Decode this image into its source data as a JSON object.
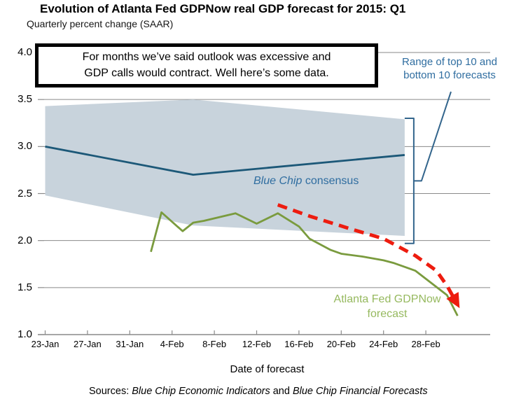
{
  "header": {
    "title": "Evolution of Atlanta Fed GDPNow real GDP forecast for 2015: Q1",
    "subtitle": "Quarterly percent change (SAAR)"
  },
  "annotation": {
    "line1": "For months we’ve said outlook was excessive and",
    "line2": "GDP calls would contract. Well here’s some data."
  },
  "labels": {
    "range_line1": "Range of top 10 and",
    "range_line2": "bottom 10 forecasts",
    "blue_chip_italic": "Blue Chip",
    "blue_chip_rest": " consensus",
    "gdpnow_line1": "Atlanta Fed GDPNow",
    "gdpnow_line2": "forecast",
    "xlabel": "Date of forecast"
  },
  "footer": {
    "sources_prefix": "Sources: ",
    "source1": "Blue Chip Economic Indicators",
    "sources_and": " and ",
    "source2": "Blue Chip Financial Forecasts"
  },
  "colors": {
    "band": "#C8D3DC",
    "blue_line": "#1C5878",
    "blue_text": "#2F6DA0",
    "bracket": "#33658C",
    "green_line": "#7A9B3E",
    "green_text": "#96B95F",
    "red_arrow": "#ED1C0F",
    "grid": "#8A8A8A"
  },
  "chart_data": {
    "type": "line",
    "title": "Evolution of Atlanta Fed GDPNow real GDP forecast for 2015: Q1",
    "ylabel": "Quarterly percent change (SAAR)",
    "xlabel": "Date of forecast",
    "ylim": [
      1.0,
      4.0
    ],
    "grid": true,
    "y_ticks": [
      4.0,
      3.5,
      3.0,
      2.5,
      2.0,
      1.5,
      1.0
    ],
    "x_ticks": [
      "23-Jan",
      "27-Jan",
      "31-Jan",
      "4-Feb",
      "8-Feb",
      "12-Feb",
      "16-Feb",
      "20-Feb",
      "24-Feb",
      "28-Feb"
    ],
    "band": {
      "name": "Range of top 10 and bottom 10 forecasts",
      "points": [
        {
          "date": "23-Jan",
          "top": 3.43,
          "bottom": 2.48
        },
        {
          "date": "6-Feb",
          "top": 3.5,
          "bottom": 2.16
        },
        {
          "date": "26-Feb",
          "top": 3.29,
          "bottom": 2.05
        }
      ]
    },
    "range_bracket": {
      "top": 3.3,
      "bottom": 1.97
    },
    "series": [
      {
        "name": "Blue Chip consensus",
        "points": [
          [
            "23-Jan",
            3.0
          ],
          [
            "6-Feb",
            2.7
          ],
          [
            "26-Feb",
            2.91
          ]
        ]
      },
      {
        "name": "Atlanta Fed GDPNow forecast",
        "points": [
          [
            "2-Feb",
            1.88
          ],
          [
            "3-Feb",
            2.3
          ],
          [
            "5-Feb",
            2.1
          ],
          [
            "6-Feb",
            2.19
          ],
          [
            "7-Feb",
            2.21
          ],
          [
            "10-Feb",
            2.29
          ],
          [
            "12-Feb",
            2.18
          ],
          [
            "14-Feb",
            2.29
          ],
          [
            "16-Feb",
            2.15
          ],
          [
            "17-Feb",
            2.02
          ],
          [
            "19-Feb",
            1.9
          ],
          [
            "20-Feb",
            1.86
          ],
          [
            "22-Feb",
            1.83
          ],
          [
            "24-Feb",
            1.79
          ],
          [
            "25-Feb",
            1.76
          ],
          [
            "27-Feb",
            1.68
          ],
          [
            "2-Mar",
            1.42
          ],
          [
            "3-Mar",
            1.2
          ]
        ]
      }
    ],
    "arrow": {
      "name": "downtrend-arrow",
      "points": [
        [
          "14-Feb",
          2.38
        ],
        [
          "17-Feb",
          2.26
        ],
        [
          "21-Feb",
          2.12
        ],
        [
          "24-Feb",
          2.02
        ],
        [
          "27-Feb",
          1.84
        ],
        [
          "1-Mar",
          1.68
        ],
        [
          "2-Mar",
          1.52
        ],
        [
          "3-Mar",
          1.32
        ]
      ]
    }
  }
}
